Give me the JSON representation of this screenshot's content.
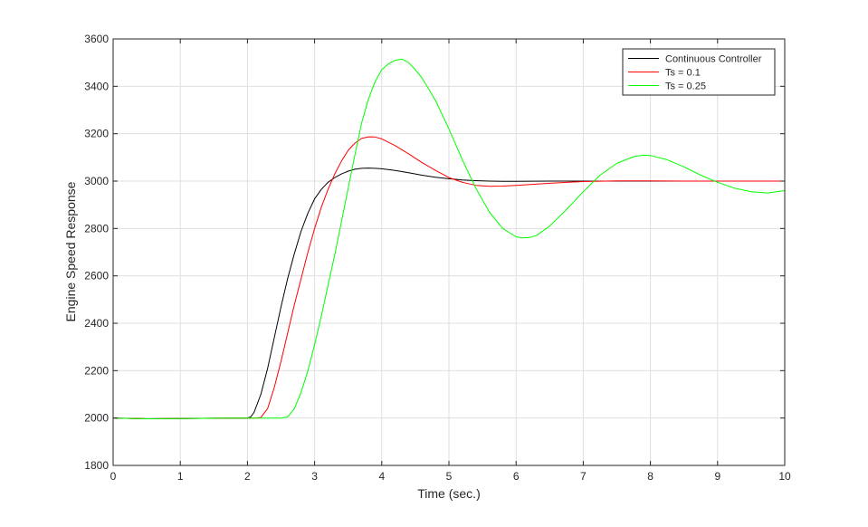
{
  "chart_data": {
    "type": "line",
    "xlabel": "Time (sec.)",
    "ylabel": "Engine Speed Response",
    "xlim": [
      0,
      10
    ],
    "ylim": [
      1800,
      3600
    ],
    "xticks": [
      0,
      1,
      2,
      3,
      4,
      5,
      6,
      7,
      8,
      9,
      10
    ],
    "yticks": [
      1800,
      2000,
      2200,
      2400,
      2600,
      2800,
      3000,
      3200,
      3400,
      3600
    ],
    "grid": true,
    "legend_position": "top-right",
    "series": [
      {
        "name": "Continuous Controller",
        "color": "#000000",
        "x": [
          0,
          0.5,
          1,
          1.5,
          2,
          2.05,
          2.1,
          2.2,
          2.3,
          2.4,
          2.5,
          2.6,
          2.7,
          2.8,
          2.9,
          3.0,
          3.1,
          3.2,
          3.3,
          3.4,
          3.5,
          3.6,
          3.7,
          3.8,
          3.9,
          4.0,
          4.2,
          4.4,
          4.6,
          4.8,
          5.0,
          5.2,
          5.4,
          5.6,
          5.8,
          6.0,
          6.5,
          7.0,
          7.5,
          8.0,
          8.5,
          9.0,
          9.5,
          10.0
        ],
        "y": [
          2000,
          1997,
          1998,
          1999,
          2000,
          2005,
          2025,
          2100,
          2210,
          2340,
          2470,
          2590,
          2695,
          2790,
          2865,
          2925,
          2965,
          2995,
          3015,
          3030,
          3042,
          3050,
          3054,
          3055,
          3054,
          3052,
          3045,
          3035,
          3025,
          3016,
          3010,
          3005,
          3002,
          3000,
          2999,
          2999,
          3000,
          3000,
          3000,
          3000,
          3000,
          3000,
          3000,
          3000
        ]
      },
      {
        "name": "Ts = 0.1",
        "color": "#ff0000",
        "x": [
          0,
          0.5,
          1,
          1.5,
          2,
          2.1,
          2.2,
          2.3,
          2.4,
          2.5,
          2.6,
          2.7,
          2.8,
          2.9,
          3.0,
          3.1,
          3.2,
          3.3,
          3.4,
          3.5,
          3.6,
          3.7,
          3.8,
          3.9,
          4.0,
          4.2,
          4.4,
          4.6,
          4.8,
          5.0,
          5.2,
          5.4,
          5.6,
          5.8,
          6.0,
          6.5,
          7.0,
          7.5,
          8.0,
          8.5,
          9.0,
          9.5,
          10.0
        ],
        "y": [
          2000,
          1997,
          1998,
          1999,
          2000,
          2000,
          2002,
          2040,
          2130,
          2240,
          2360,
          2480,
          2590,
          2700,
          2800,
          2890,
          2965,
          3030,
          3085,
          3130,
          3160,
          3180,
          3187,
          3186,
          3178,
          3150,
          3115,
          3078,
          3045,
          3015,
          2995,
          2982,
          2978,
          2979,
          2982,
          2991,
          2998,
          3001,
          3001,
          3000,
          3000,
          3000,
          3000
        ]
      },
      {
        "name": "Ts = 0.25",
        "color": "#00ff00",
        "x": [
          0,
          0.5,
          1,
          1.5,
          2,
          2.5,
          2.6,
          2.7,
          2.8,
          2.9,
          3.0,
          3.1,
          3.2,
          3.3,
          3.4,
          3.5,
          3.6,
          3.7,
          3.8,
          3.9,
          4.0,
          4.1,
          4.2,
          4.3,
          4.4,
          4.5,
          4.6,
          4.8,
          5.0,
          5.2,
          5.4,
          5.6,
          5.8,
          6.0,
          6.1,
          6.2,
          6.3,
          6.5,
          6.75,
          7.0,
          7.25,
          7.5,
          7.75,
          7.9,
          8.0,
          8.25,
          8.5,
          8.75,
          9.0,
          9.25,
          9.5,
          9.75,
          10.0
        ],
        "y": [
          2000,
          1997,
          1998,
          1999,
          2000,
          2000,
          2005,
          2040,
          2110,
          2200,
          2310,
          2430,
          2560,
          2690,
          2830,
          2970,
          3110,
          3245,
          3345,
          3420,
          3470,
          3495,
          3510,
          3515,
          3500,
          3470,
          3435,
          3340,
          3220,
          3090,
          2970,
          2870,
          2800,
          2765,
          2760,
          2762,
          2770,
          2810,
          2880,
          2955,
          3025,
          3075,
          3103,
          3110,
          3108,
          3090,
          3060,
          3025,
          2995,
          2970,
          2955,
          2950,
          2960
        ]
      }
    ]
  }
}
